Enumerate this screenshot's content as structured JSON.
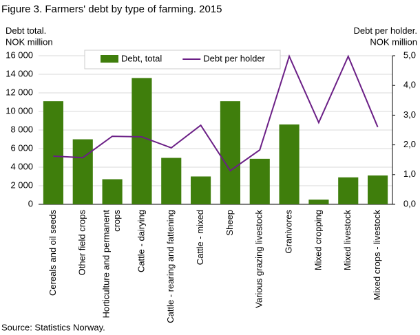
{
  "chart_data": {
    "type": "bar",
    "title": "Figure 3. Farmers' debt by type of farming. 2015",
    "y_label": "Debt total.\nNOK million",
    "y2_label": "Debt per holder.\nNOK million",
    "source": "Source: Statistics Norway.",
    "categories": [
      "Cereals and oil seeds",
      "Other field crops",
      "Horticulture and permanent\ncrops",
      "Cattle - dairying",
      "Cattle - rearing and fattening",
      "Cattle - mixed",
      "Sheep",
      "Various grazing livestock",
      "Granivores",
      "Mixed cropping",
      "Mixed livestock",
      "Mixed crops - livestock"
    ],
    "series": [
      {
        "name": "Debt, total",
        "type": "bar",
        "color": "#3f7e0c",
        "values": [
          11100,
          7000,
          2700,
          13600,
          5000,
          3000,
          11100,
          4900,
          8600,
          500,
          2900,
          3100
        ]
      },
      {
        "name": "Debt per holder",
        "type": "line",
        "axis": "y2",
        "color": "#6b1f86",
        "values": [
          1.62,
          1.57,
          2.29,
          2.27,
          1.9,
          2.66,
          1.13,
          1.83,
          4.98,
          2.75,
          4.98,
          2.6
        ]
      }
    ],
    "ylim": [
      0,
      16000
    ],
    "yticks": [
      0,
      {
        "value": 2000,
        "label": "2 000"
      },
      {
        "value": 4000,
        "label": "4 000"
      },
      {
        "value": 6000,
        "label": "6 000"
      },
      {
        "value": 8000,
        "label": "8 000"
      },
      {
        "value": 10000,
        "label": "10 000"
      },
      {
        "value": 12000,
        "label": "12 000"
      },
      {
        "value": 14000,
        "label": "14 000"
      },
      {
        "value": 16000,
        "label": "16 000"
      }
    ],
    "y2lim": [
      0,
      5
    ],
    "y2ticks": [
      {
        "value": 0,
        "label": "0,0"
      },
      {
        "value": 1,
        "label": "1,0"
      },
      {
        "value": 2,
        "label": "2,0"
      },
      {
        "value": 3,
        "label": "3,0"
      },
      {
        "value": 4,
        "label": "4,0"
      },
      {
        "value": 5,
        "label": "5,0"
      }
    ],
    "grid": true,
    "legend": "top"
  }
}
